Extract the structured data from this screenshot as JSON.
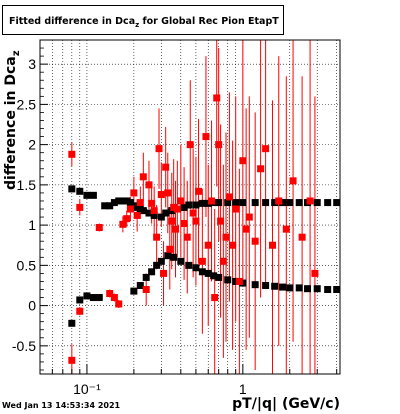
{
  "title": "Fitted difference in Dca",
  "title_sub": "z",
  "title_suffix": " for Global Rec Pion EtapT",
  "ylabel": "difference in Dca",
  "ylabel_sub": "z",
  "xlabel": "pT/|q| (GeV/c)",
  "timestamp": "Wed Jan 13 14:53:34 2021",
  "colors": {
    "black_series": "#000000",
    "red_series": "#ff0000",
    "grid": "#000000"
  },
  "chart_data": {
    "type": "scatter",
    "x_scale": "log",
    "xlim": [
      0.05,
      4.2
    ],
    "ylim": [
      -0.85,
      3.3
    ],
    "grid": true,
    "x_ticks": [
      {
        "value": 0.1,
        "label": "10⁻¹"
      },
      {
        "value": 1,
        "label": "1"
      }
    ],
    "y_ticks": [
      -0.5,
      0,
      0.5,
      1,
      1.5,
      2,
      2.5,
      3
    ],
    "series": [
      {
        "color": "black",
        "marker": "square",
        "points": [
          [
            0.08,
            1.45
          ],
          [
            0.09,
            1.42
          ],
          [
            0.1,
            1.37
          ],
          [
            0.11,
            1.37
          ],
          [
            0.13,
            1.24
          ],
          [
            0.14,
            1.24
          ],
          [
            0.15,
            1.28
          ],
          [
            0.16,
            1.3
          ],
          [
            0.17,
            1.3
          ],
          [
            0.18,
            1.3
          ],
          [
            0.19,
            1.28
          ],
          [
            0.2,
            1.24
          ],
          [
            0.21,
            1.22
          ],
          [
            0.22,
            1.2
          ],
          [
            0.23,
            1.18
          ],
          [
            0.25,
            1.15
          ],
          [
            0.27,
            1.12
          ],
          [
            0.3,
            1.1
          ],
          [
            0.32,
            1.15
          ],
          [
            0.35,
            1.18
          ],
          [
            0.38,
            1.2
          ],
          [
            0.42,
            1.22
          ],
          [
            0.45,
            1.25
          ],
          [
            0.5,
            1.25
          ],
          [
            0.55,
            1.27
          ],
          [
            0.6,
            1.27
          ],
          [
            0.65,
            1.28
          ],
          [
            0.7,
            1.28
          ],
          [
            0.8,
            1.28
          ],
          [
            0.9,
            1.28
          ],
          [
            1.0,
            1.28
          ],
          [
            1.2,
            1.28
          ],
          [
            1.4,
            1.28
          ],
          [
            1.6,
            1.28
          ],
          [
            1.8,
            1.28
          ],
          [
            2.0,
            1.28
          ],
          [
            2.3,
            1.28
          ],
          [
            2.6,
            1.28
          ],
          [
            3.0,
            1.28
          ],
          [
            3.5,
            1.28
          ],
          [
            4.0,
            1.28
          ],
          [
            0.08,
            -0.22
          ],
          [
            0.09,
            0.07
          ],
          [
            0.1,
            0.12
          ],
          [
            0.11,
            0.1
          ],
          [
            0.12,
            0.1
          ],
          [
            0.2,
            0.18
          ],
          [
            0.22,
            0.25
          ],
          [
            0.24,
            0.35
          ],
          [
            0.26,
            0.42
          ],
          [
            0.28,
            0.5
          ],
          [
            0.3,
            0.55
          ],
          [
            0.33,
            0.62
          ],
          [
            0.36,
            0.6
          ],
          [
            0.4,
            0.55
          ],
          [
            0.45,
            0.5
          ],
          [
            0.5,
            0.47
          ],
          [
            0.55,
            0.42
          ],
          [
            0.6,
            0.4
          ],
          [
            0.65,
            0.37
          ],
          [
            0.7,
            0.35
          ],
          [
            0.8,
            0.32
          ],
          [
            0.9,
            0.3
          ],
          [
            1.0,
            0.28
          ],
          [
            1.2,
            0.26
          ],
          [
            1.4,
            0.25
          ],
          [
            1.6,
            0.24
          ],
          [
            1.8,
            0.23
          ],
          [
            2.0,
            0.22
          ],
          [
            2.3,
            0.22
          ],
          [
            2.6,
            0.21
          ],
          [
            3.0,
            0.21
          ],
          [
            3.5,
            0.2
          ],
          [
            4.0,
            0.2
          ]
        ]
      },
      {
        "color": "red",
        "marker": "square",
        "points": [
          [
            0.08,
            1.88,
            0.15
          ],
          [
            0.08,
            -0.68,
            0.2
          ],
          [
            0.09,
            1.22,
            0.1
          ],
          [
            0.09,
            -0.07,
            0.05
          ],
          [
            0.12,
            0.97,
            0.05
          ],
          [
            0.14,
            0.15,
            0.05
          ],
          [
            0.15,
            0.1,
            0.05
          ],
          [
            0.16,
            0.02,
            0.05
          ],
          [
            0.17,
            1.01,
            0.1
          ],
          [
            0.18,
            1.08,
            0.1
          ],
          [
            0.19,
            1.2,
            0.15
          ],
          [
            0.2,
            1.4,
            0.2
          ],
          [
            0.21,
            1.12,
            0.2
          ],
          [
            0.22,
            1.28,
            0.2
          ],
          [
            0.23,
            1.6,
            0.3
          ],
          [
            0.24,
            0.2,
            0.2
          ],
          [
            0.25,
            1.5,
            0.3
          ],
          [
            0.26,
            1.27,
            0.25
          ],
          [
            0.27,
            1.18,
            0.3
          ],
          [
            0.28,
            0.85,
            0.4
          ],
          [
            0.29,
            1.95,
            0.5
          ],
          [
            0.3,
            1.38,
            0.4
          ],
          [
            0.31,
            0.4,
            0.4
          ],
          [
            0.32,
            1.72,
            0.5
          ],
          [
            0.33,
            1.4,
            0.5
          ],
          [
            0.34,
            0.7,
            0.5
          ],
          [
            0.35,
            1.05,
            0.6
          ],
          [
            0.36,
            1.22,
            0.6
          ],
          [
            0.37,
            0.95,
            0.6
          ],
          [
            0.38,
            1.2,
            0.6
          ],
          [
            0.4,
            1.3,
            0.7
          ],
          [
            0.42,
            1.02,
            0.7
          ],
          [
            0.44,
            0.85,
            0.7
          ],
          [
            0.46,
            2.0,
            0.8
          ],
          [
            0.48,
            1.15,
            0.8
          ],
          [
            0.5,
            1.05,
            0.8
          ],
          [
            0.52,
            1.42,
            0.9
          ],
          [
            0.55,
            0.55,
            0.9
          ],
          [
            0.58,
            2.1,
            1.0
          ],
          [
            0.6,
            0.75,
            1.0
          ],
          [
            0.63,
            1.3,
            1.0
          ],
          [
            0.66,
            0.1,
            1.1
          ],
          [
            0.68,
            2.58,
            1.1
          ],
          [
            0.7,
            2.0,
            1.2
          ],
          [
            0.72,
            1.05,
            1.2
          ],
          [
            0.75,
            0.55,
            1.2
          ],
          [
            0.78,
            0.85,
            1.3
          ],
          [
            0.82,
            1.35,
            1.3
          ],
          [
            0.86,
            0.75,
            1.3
          ],
          [
            0.9,
            1.2,
            1.4
          ],
          [
            0.95,
            0.3,
            1.4
          ],
          [
            1.0,
            1.8,
            1.5
          ],
          [
            1.05,
            0.95,
            1.5
          ],
          [
            1.1,
            1.1,
            1.5
          ],
          [
            1.2,
            0.8,
            1.6
          ],
          [
            1.3,
            1.7,
            1.6
          ],
          [
            1.4,
            1.95,
            1.7
          ],
          [
            1.55,
            0.75,
            1.8
          ],
          [
            1.7,
            1.3,
            1.8
          ],
          [
            1.9,
            0.95,
            1.9
          ],
          [
            2.1,
            1.55,
            2.0
          ],
          [
            2.4,
            0.85,
            2.0
          ],
          [
            2.7,
            1.3,
            2.2
          ],
          [
            2.9,
            0.4,
            2.2
          ]
        ]
      }
    ]
  }
}
